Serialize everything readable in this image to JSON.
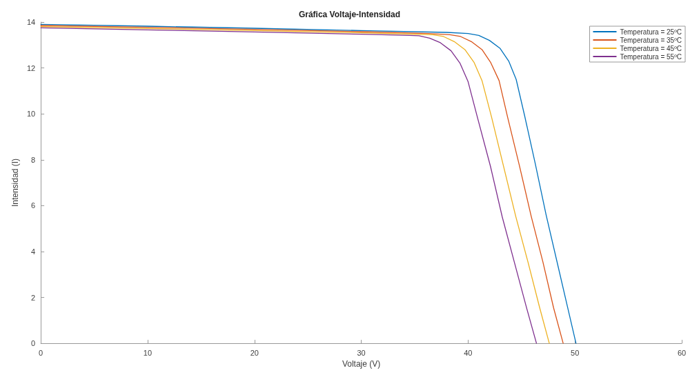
{
  "chart_data": {
    "type": "line",
    "title": "Gráfica Voltaje-Intensidad",
    "xlabel": "Voltaje (V)",
    "ylabel": "Intensidad (I)",
    "xlim": [
      0,
      60
    ],
    "ylim": [
      0,
      14
    ],
    "xticks": [
      0,
      10,
      20,
      30,
      40,
      50,
      60
    ],
    "yticks": [
      0,
      2,
      4,
      6,
      8,
      10,
      12,
      14
    ],
    "grid": false,
    "legend": "top right",
    "marker": "none",
    "line_style": "solid",
    "series": [
      {
        "name": "Temperatura = 25ºC",
        "color": "#0072bd",
        "x": [
          0,
          10,
          20,
          30,
          38,
          40,
          41,
          42,
          43,
          43.8,
          44.5,
          45.3,
          46.3,
          47.3,
          48.3,
          49.3,
          50.1
        ],
        "values": [
          13.9,
          13.82,
          13.73,
          13.63,
          13.55,
          13.5,
          13.42,
          13.2,
          12.85,
          12.3,
          11.5,
          9.9,
          7.8,
          5.6,
          3.6,
          1.6,
          0
        ]
      },
      {
        "name": "Temperatura = 35ºC",
        "color": "#d95319",
        "x": [
          0,
          10,
          20,
          30,
          36.3,
          38.3,
          39.3,
          40.3,
          41.3,
          42.1,
          42.9,
          43.7,
          44.8,
          45.9,
          47,
          48,
          48.9
        ],
        "values": [
          13.85,
          13.77,
          13.68,
          13.58,
          13.5,
          13.45,
          13.37,
          13.15,
          12.8,
          12.25,
          11.45,
          9.85,
          7.75,
          5.55,
          3.55,
          1.55,
          0
        ]
      },
      {
        "name": "Temperatura = 45ºC",
        "color": "#edb120",
        "x": [
          0,
          10,
          20,
          30,
          35,
          36.7,
          37.7,
          38.7,
          39.7,
          40.55,
          41.3,
          42.2,
          43.3,
          44.45,
          45.6,
          46.7,
          47.6
        ],
        "values": [
          13.8,
          13.72,
          13.63,
          13.53,
          13.47,
          13.45,
          13.37,
          13.15,
          12.8,
          12.25,
          11.45,
          9.85,
          7.75,
          5.55,
          3.55,
          1.55,
          0
        ]
      },
      {
        "name": "Temperatura = 55ºC",
        "color": "#7e2f8e",
        "x": [
          0,
          10,
          20,
          30,
          34.5,
          35.4,
          36.4,
          37.4,
          38.4,
          39.25,
          40,
          40.9,
          42.1,
          43.2,
          44.35,
          45.5,
          46.4
        ],
        "values": [
          13.75,
          13.66,
          13.57,
          13.47,
          13.42,
          13.4,
          13.3,
          13.1,
          12.75,
          12.2,
          11.4,
          9.8,
          7.7,
          5.5,
          3.5,
          1.5,
          0
        ]
      }
    ]
  }
}
